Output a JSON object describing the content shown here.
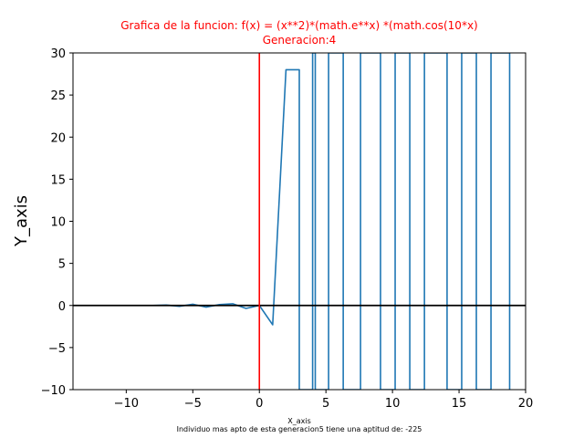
{
  "chart_data": {
    "type": "line",
    "title_line1": "Grafica de la funcion: f(x) = (x**2)*(math.e**x) *(math.cos(10*x)",
    "title_line2": "Generacion:4",
    "xlabel": "X_axis",
    "ylabel": "Y_axis",
    "footnote": "Individuo mas apto de esta generacion5 tiene una aptitud de: -225",
    "xlim": [
      -14,
      20
    ],
    "ylim": [
      -10,
      30
    ],
    "xticks": [
      -10,
      -5,
      0,
      5,
      10,
      15,
      20
    ],
    "xtick_labels": [
      "−10",
      "−5",
      "0",
      "5",
      "10",
      "15",
      "20"
    ],
    "yticks": [
      -10,
      -5,
      0,
      5,
      10,
      15,
      20,
      25,
      30
    ],
    "ytick_labels": [
      "−10",
      "−5",
      "0",
      "5",
      "10",
      "15",
      "20",
      "25",
      "30"
    ],
    "series": [
      {
        "x": [
          -14,
          -13,
          -12,
          -11,
          -10,
          -9,
          -8,
          -7,
          -6,
          -5,
          -4,
          -3,
          -2,
          -1,
          0,
          1,
          2,
          3,
          3,
          4,
          4,
          4.2,
          4.2,
          5.2,
          5.2,
          6.3,
          6.3,
          7.6,
          7.6,
          9.1,
          9.1,
          10.2,
          10.2,
          11.3,
          11.3,
          12.4,
          12.4,
          14.1,
          14.1,
          15.2,
          15.2,
          16.3,
          16.3,
          17.4,
          17.4,
          18.8,
          18.8
        ],
        "y": [
          0,
          0,
          0,
          0,
          0,
          0,
          0,
          0.05,
          -0.1,
          0.15,
          -0.2,
          0.1,
          0.2,
          -0.35,
          0,
          -2.3,
          28,
          28,
          -10,
          -10,
          30,
          30,
          -10,
          -10,
          30,
          30,
          -10,
          -10,
          30,
          30,
          -10,
          -10,
          30,
          30,
          -10,
          -10,
          30,
          30,
          -10,
          -10,
          30,
          30,
          -10,
          -10,
          30,
          30,
          -10
        ]
      }
    ],
    "reference_lines": {
      "horizontal_y": 0,
      "vertical_x": 0
    },
    "colors": {
      "series": "#1f77b4",
      "hline": "#000000",
      "vline": "#ff0000",
      "title": "#ff0000"
    }
  }
}
